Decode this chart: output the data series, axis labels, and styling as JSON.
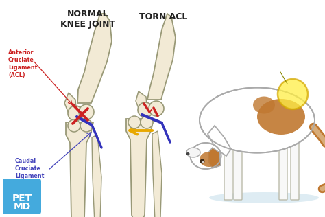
{
  "bg_color": "#ffffff",
  "title_normal": "NORMAL\nKNEE JOINT",
  "title_torn": "TORN ACL",
  "label_acl": "Anterior\nCruciate\nLigament\n(ACL)",
  "label_caudal": "Caudal\nCruciate\nLigament",
  "label_acl_color": "#cc2222",
  "label_caudal_color": "#4444bb",
  "bone_color": "#f2ead5",
  "bone_outline": "#999977",
  "acl_color": "#cc2222",
  "ccl_color": "#3333bb",
  "arrow_color": "#e8a800",
  "highlight_color": "#ffee55",
  "pet_md_bg": "#44aadd",
  "pet_md_text": "#ffffff",
  "dog_body_color": "#ffffff",
  "dog_outline": "#aaaaaa",
  "dog_brown": "#c07830",
  "dog_shadow": "#d6e8f0",
  "fig_width": 4.74,
  "fig_height": 3.16,
  "dpi": 100
}
